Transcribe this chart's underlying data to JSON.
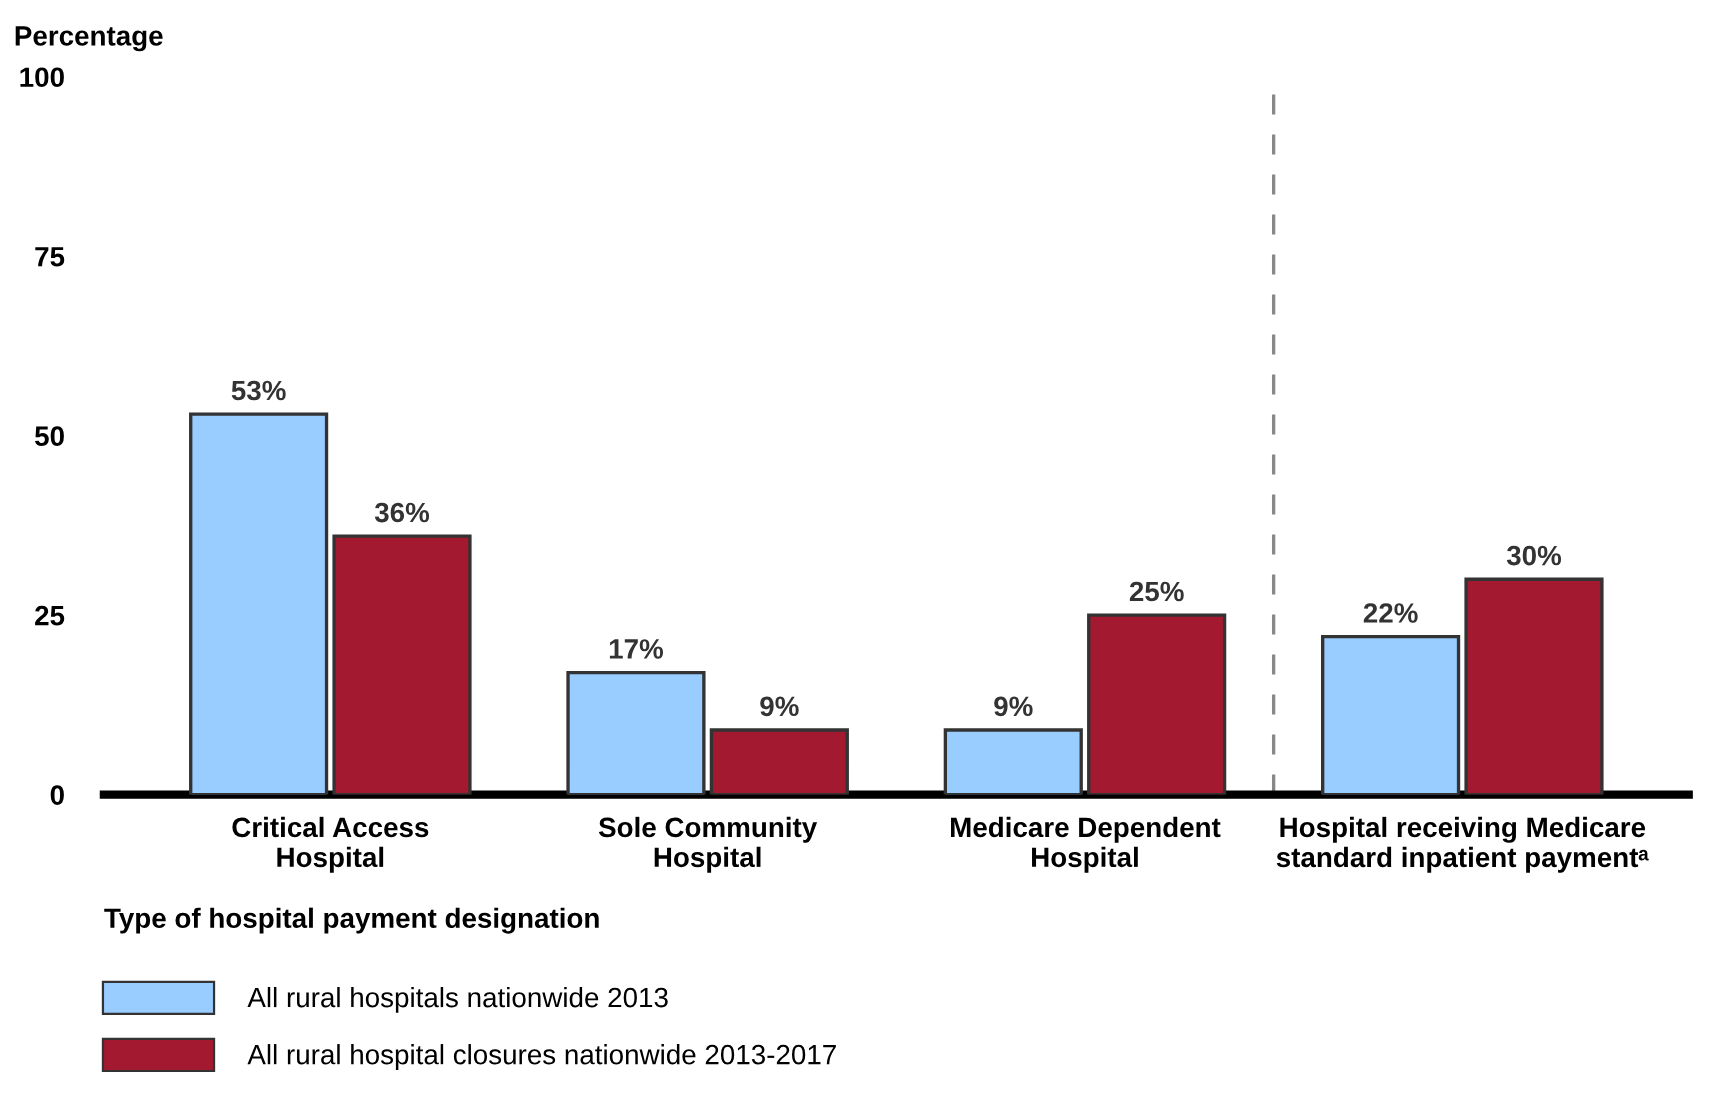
{
  "chart_data": {
    "type": "bar",
    "ylabel": "Percentage",
    "xlabel": "Type of hospital payment designation",
    "categories": [
      "Critical Access\nHospital",
      "Sole Community\nHospital",
      "Medicare Dependent\nHospital",
      "Hospital receiving Medicare\nstandard inpatient paymentᵃ"
    ],
    "series": [
      {
        "name": "All rural hospitals nationwide 2013",
        "color": "#99ccff",
        "values": [
          53,
          17,
          9,
          22
        ],
        "value_labels": [
          "53%",
          "17%",
          "9%",
          "22%"
        ]
      },
      {
        "name": "All rural hospital closures nationwide 2013-2017",
        "color": "#a31930",
        "values": [
          36,
          9,
          25,
          30
        ],
        "value_labels": [
          "36%",
          "9%",
          "25%",
          "30%"
        ]
      }
    ],
    "ylim": [
      0,
      100
    ],
    "yticks": [
      0,
      25,
      50,
      75,
      100
    ],
    "grid": false,
    "legend": "bottom left"
  }
}
